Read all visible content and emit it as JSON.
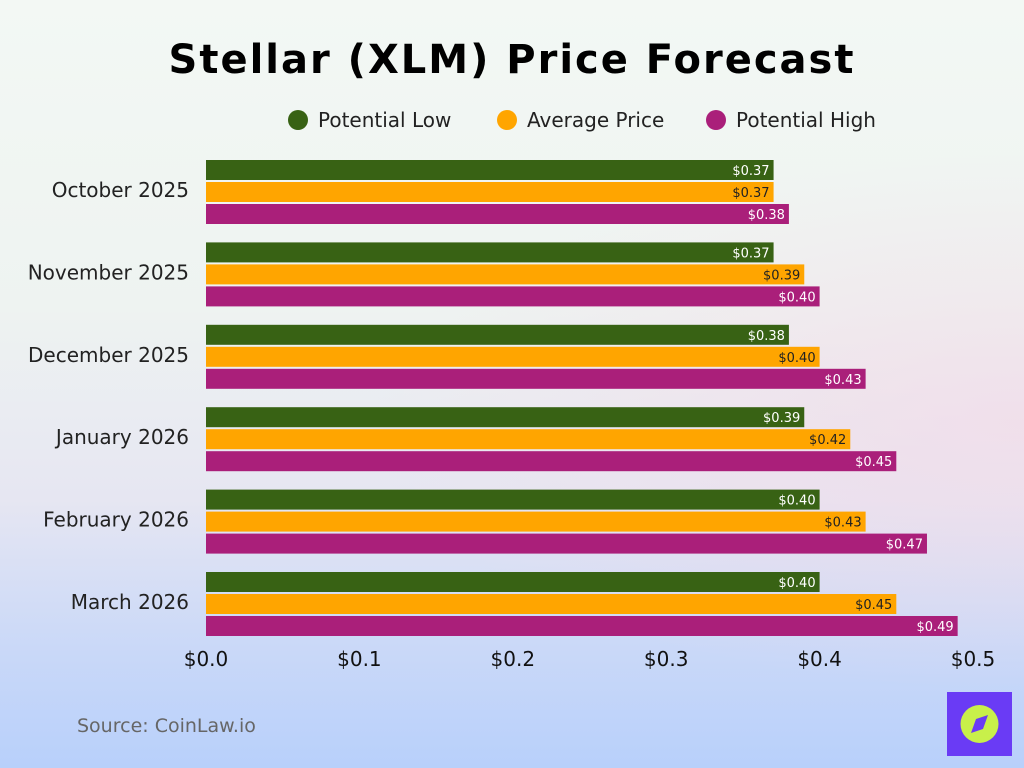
{
  "chart_data": {
    "type": "bar",
    "orientation": "horizontal",
    "title": "Stellar (XLM) Price Forecast",
    "categories": [
      "October 2025",
      "November 2025",
      "December 2025",
      "January 2026",
      "February 2026",
      "March 2026"
    ],
    "series": [
      {
        "name": "Potential Low",
        "color": "#386214",
        "values": [
          0.37,
          0.37,
          0.38,
          0.39,
          0.4,
          0.4
        ]
      },
      {
        "name": "Average Price",
        "color": "#FFA500",
        "values": [
          0.37,
          0.39,
          0.4,
          0.42,
          0.43,
          0.45
        ]
      },
      {
        "name": "Potential High",
        "color": "#AA1F7A",
        "values": [
          0.38,
          0.4,
          0.43,
          0.45,
          0.47,
          0.49
        ]
      }
    ],
    "xlim": [
      0,
      0.5
    ],
    "xticks": [
      "$0.0",
      "$0.1",
      "$0.2",
      "$0.3",
      "$0.4",
      "$0.5"
    ],
    "value_prefix": "$",
    "legend_position": "top",
    "grid": false
  },
  "source": "Source: CoinLaw.io",
  "logo": {
    "icon": "compass-icon",
    "bg_color": "#6A3BF5",
    "fg_color": "#C8F04A"
  }
}
